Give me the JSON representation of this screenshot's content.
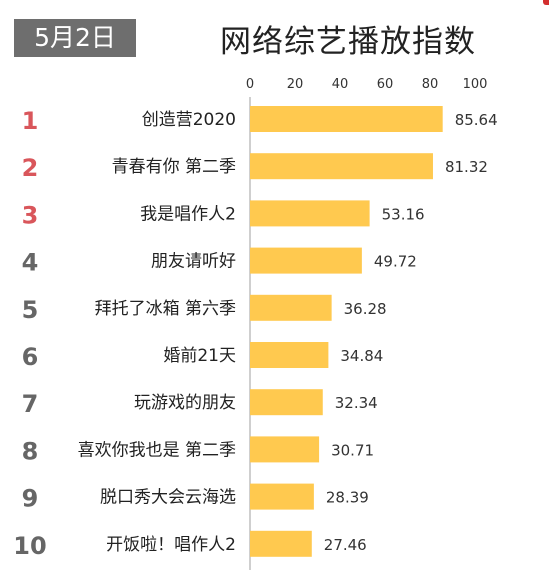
{
  "date_badge": "5月2日",
  "chart_data": {
    "type": "bar",
    "orientation": "horizontal",
    "title": "网络综艺播放指数",
    "ranks": [
      "1",
      "2",
      "3",
      "4",
      "5",
      "6",
      "7",
      "8",
      "9",
      "10"
    ],
    "categories": [
      "创造营2020",
      "青春有你 第二季",
      "我是唱作人2",
      "朋友请听好",
      "拜托了冰箱 第六季",
      "婚前21天",
      "玩游戏的朋友",
      "喜欢你我也是 第二季",
      "脱口秀大会云海选",
      "开饭啦！唱作人2"
    ],
    "values": [
      85.64,
      81.32,
      53.16,
      49.72,
      36.28,
      34.84,
      32.34,
      30.71,
      28.39,
      27.46
    ],
    "value_labels": [
      "85.64",
      "81.32",
      "53.16",
      "49.72",
      "36.28",
      "34.84",
      "32.34",
      "30.71",
      "28.39",
      "27.46"
    ],
    "x_ticks": [
      "0",
      "20",
      "40",
      "60",
      "80",
      "100"
    ],
    "xlim": [
      0,
      100
    ],
    "grid": false,
    "legend": "none",
    "colors": {
      "bar": "#FFC94F",
      "rank_top3": "#D9565B",
      "rank_other": "#666666",
      "axis": "#bfbfbf"
    }
  }
}
